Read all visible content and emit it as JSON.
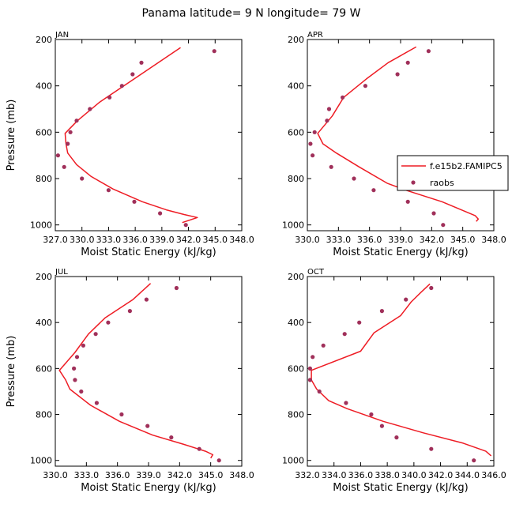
{
  "title": "Panama  latitude= 9 N longitude= 79 W",
  "legend": {
    "model_label": "f.e15b2.FAMIPC5",
    "obs_label": "raobs"
  },
  "colors": {
    "model": "#ee1c24",
    "obs": "#a0305a"
  },
  "chart_data": [
    {
      "type": "line",
      "panel": "JAN",
      "title": "JAN",
      "xlabel": "Moist Static Energy (kJ/kg)",
      "ylabel": "Pressure (mb)",
      "xlim": [
        327.0,
        348.0
      ],
      "ylim": [
        1025,
        200
      ],
      "xticks": [
        327.0,
        330.0,
        333.0,
        336.0,
        339.0,
        342.0,
        345.0,
        348.0
      ],
      "xtick_labels": [
        "327.0",
        "330.0",
        "333.0",
        "336.0",
        "339.0",
        "342.0",
        "345.0",
        "348.0"
      ],
      "yticks": [
        200,
        400,
        600,
        800,
        1000
      ],
      "ytick_labels": [
        "200",
        "400",
        "600",
        "800",
        "1000"
      ],
      "series": [
        {
          "name": "f.e15b2.FAMIPC5",
          "points": [
            [
              341.1,
              235
            ],
            [
              335.5,
              380
            ],
            [
              332.0,
              470
            ],
            [
              329.5,
              550
            ],
            [
              328.1,
              605
            ],
            [
              328.2,
              650
            ],
            [
              328.4,
              690
            ],
            [
              329.4,
              740
            ],
            [
              331.0,
              790
            ],
            [
              333.5,
              845
            ],
            [
              336.8,
              900
            ],
            [
              339.5,
              935
            ],
            [
              341.5,
              955
            ],
            [
              343.0,
              968
            ],
            [
              341.3,
              990
            ]
          ]
        },
        {
          "name": "raobs",
          "points": [
            [
              344.9,
              250
            ],
            [
              336.7,
              300
            ],
            [
              335.7,
              350
            ],
            [
              334.5,
              400
            ],
            [
              333.1,
              450
            ],
            [
              330.9,
              500
            ],
            [
              329.4,
              550
            ],
            [
              328.7,
              600
            ],
            [
              328.4,
              650
            ],
            [
              327.3,
              700
            ],
            [
              328.0,
              750
            ],
            [
              330.0,
              800
            ],
            [
              333.0,
              850
            ],
            [
              335.9,
              900
            ],
            [
              338.8,
              950
            ],
            [
              341.7,
              1000
            ]
          ]
        }
      ]
    },
    {
      "type": "line",
      "panel": "APR",
      "title": "APR",
      "xlabel": "Moist Static Energy (kJ/kg)",
      "ylabel": "",
      "xlim": [
        330.0,
        348.0
      ],
      "ylim": [
        1025,
        200
      ],
      "xticks": [
        330.0,
        333.0,
        336.0,
        339.0,
        342.0,
        345.0,
        348.0
      ],
      "xtick_labels": [
        "330.0",
        "333.0",
        "336.0",
        "339.0",
        "342.0",
        "345.0",
        "348.0"
      ],
      "yticks": [
        200,
        400,
        600,
        800,
        1000
      ],
      "ytick_labels": [
        "200",
        "400",
        "600",
        "800",
        "1000"
      ],
      "series": [
        {
          "name": "f.e15b2.FAMIPC5",
          "points": [
            [
              340.5,
              232
            ],
            [
              337.8,
              300
            ],
            [
              335.7,
              370
            ],
            [
              333.5,
              450
            ],
            [
              332.4,
              530
            ],
            [
              331.0,
              605
            ],
            [
              331.5,
              650
            ],
            [
              332.8,
              690
            ],
            [
              335.0,
              750
            ],
            [
              337.7,
              820
            ],
            [
              339.5,
              850
            ],
            [
              343.0,
              900
            ],
            [
              346.2,
              960
            ],
            [
              346.5,
              975
            ],
            [
              346.3,
              985
            ]
          ]
        },
        {
          "name": "raobs",
          "points": [
            [
              341.7,
              250
            ],
            [
              339.7,
              300
            ],
            [
              338.7,
              350
            ],
            [
              335.6,
              400
            ],
            [
              333.4,
              450
            ],
            [
              332.1,
              500
            ],
            [
              331.9,
              550
            ],
            [
              330.7,
              600
            ],
            [
              330.3,
              650
            ],
            [
              330.5,
              700
            ],
            [
              332.3,
              750
            ],
            [
              334.5,
              800
            ],
            [
              336.4,
              850
            ],
            [
              339.7,
              900
            ],
            [
              342.2,
              950
            ],
            [
              343.1,
              1000
            ]
          ]
        }
      ]
    },
    {
      "type": "line",
      "panel": "JUL",
      "title": "JUL",
      "xlabel": "Moist Static Energy (kJ/kg)",
      "ylabel": "Pressure (mb)",
      "xlim": [
        330.0,
        348.0
      ],
      "ylim": [
        1025,
        200
      ],
      "xticks": [
        330.0,
        333.0,
        336.0,
        339.0,
        342.0,
        345.0,
        348.0
      ],
      "xtick_labels": [
        "330.0",
        "333.0",
        "336.0",
        "339.0",
        "342.0",
        "345.0",
        "348.0"
      ],
      "yticks": [
        200,
        400,
        600,
        800,
        1000
      ],
      "ytick_labels": [
        "200",
        "400",
        "600",
        "800",
        "1000"
      ],
      "series": [
        {
          "name": "f.e15b2.FAMIPC5",
          "points": [
            [
              339.2,
              230
            ],
            [
              337.5,
              300
            ],
            [
              334.8,
              380
            ],
            [
              333.2,
              450
            ],
            [
              331.9,
              530
            ],
            [
              330.4,
              608
            ],
            [
              331.0,
              650
            ],
            [
              331.4,
              690
            ],
            [
              333.4,
              760
            ],
            [
              336.2,
              830
            ],
            [
              339.4,
              890
            ],
            [
              342.4,
              930
            ],
            [
              344.5,
              960
            ],
            [
              345.2,
              975
            ],
            [
              345.0,
              990
            ]
          ]
        },
        {
          "name": "raobs",
          "points": [
            [
              341.7,
              250
            ],
            [
              338.8,
              300
            ],
            [
              337.2,
              350
            ],
            [
              335.1,
              400
            ],
            [
              333.9,
              450
            ],
            [
              332.7,
              500
            ],
            [
              332.1,
              550
            ],
            [
              331.8,
              600
            ],
            [
              331.9,
              650
            ],
            [
              332.5,
              700
            ],
            [
              334.0,
              750
            ],
            [
              336.4,
              800
            ],
            [
              338.9,
              850
            ],
            [
              341.2,
              900
            ],
            [
              343.9,
              950
            ],
            [
              345.8,
              1000
            ]
          ]
        }
      ]
    },
    {
      "type": "line",
      "panel": "OCT",
      "title": "OCT",
      "xlabel": "Moist Static Energy (kJ/kg)",
      "ylabel": "",
      "xlim": [
        332.0,
        346.0
      ],
      "ylim": [
        1025,
        200
      ],
      "xticks": [
        332.0,
        334.0,
        336.0,
        338.0,
        340.0,
        342.0,
        344.0,
        346.0
      ],
      "xtick_labels": [
        "332.0",
        "334.0",
        "336.0",
        "338.0",
        "340.0",
        "342.0",
        "344.0",
        "346.0"
      ],
      "yticks": [
        200,
        400,
        600,
        800,
        1000
      ],
      "ytick_labels": [
        "200",
        "400",
        "600",
        "800",
        "1000"
      ],
      "series": [
        {
          "name": "f.e15b2.FAMIPC5",
          "points": [
            [
              341.2,
              232
            ],
            [
              340.5,
              270
            ],
            [
              339.8,
              310
            ],
            [
              339.0,
              370
            ],
            [
              337.0,
              445
            ],
            [
              336.0,
              525
            ],
            [
              332.3,
              608
            ],
            [
              332.3,
              650
            ],
            [
              332.7,
              690
            ],
            [
              333.6,
              740
            ],
            [
              335.0,
              775
            ],
            [
              337.7,
              830
            ],
            [
              340.7,
              880
            ],
            [
              343.7,
              925
            ],
            [
              345.4,
              960
            ],
            [
              345.8,
              980
            ]
          ]
        },
        {
          "name": "raobs",
          "points": [
            [
              341.3,
              250
            ],
            [
              339.4,
              300
            ],
            [
              337.6,
              350
            ],
            [
              335.9,
              400
            ],
            [
              334.8,
              450
            ],
            [
              333.2,
              500
            ],
            [
              332.4,
              550
            ],
            [
              332.2,
              600
            ],
            [
              332.2,
              650
            ],
            [
              332.9,
              700
            ],
            [
              334.9,
              750
            ],
            [
              336.8,
              800
            ],
            [
              337.6,
              850
            ],
            [
              338.7,
              900
            ],
            [
              341.3,
              950
            ],
            [
              344.5,
              1000
            ]
          ]
        }
      ]
    }
  ]
}
